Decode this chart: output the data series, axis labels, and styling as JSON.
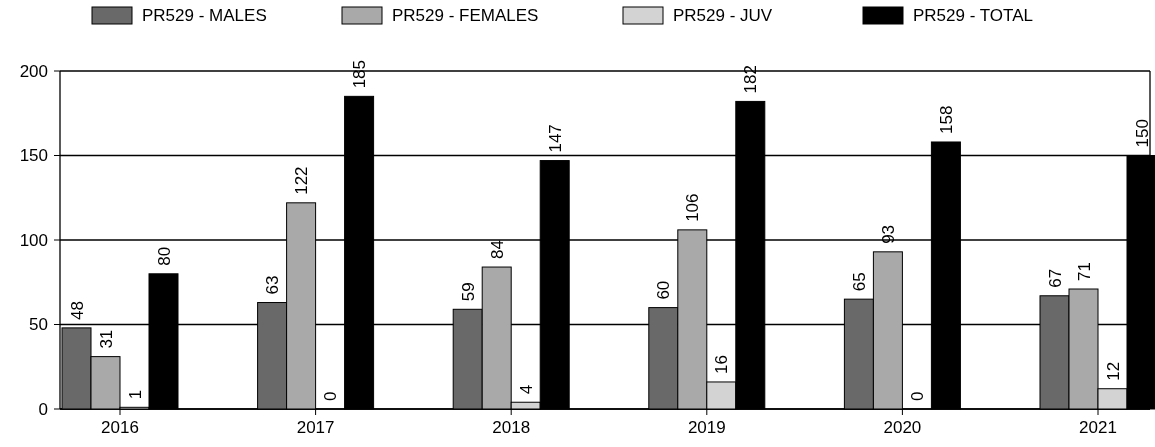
{
  "chart_data": {
    "type": "bar",
    "categories": [
      "2016",
      "2017",
      "2018",
      "2019",
      "2020",
      "2021"
    ],
    "series": [
      {
        "name": "PR529 - MALES",
        "color": "#696969",
        "values": [
          48,
          63,
          59,
          60,
          65,
          67
        ]
      },
      {
        "name": "PR529 - FEMALES",
        "color": "#a9a9a9",
        "values": [
          31,
          122,
          84,
          106,
          93,
          71
        ]
      },
      {
        "name": "PR529 - JUV",
        "color": "#d3d3d3",
        "values": [
          1,
          0,
          4,
          16,
          0,
          12
        ]
      },
      {
        "name": "PR529 - TOTAL",
        "color": "#000000",
        "values": [
          80,
          185,
          147,
          182,
          158,
          150
        ]
      }
    ],
    "ylim": [
      0,
      200
    ],
    "yticks": [
      0,
      50,
      100,
      150,
      200
    ],
    "grid": "y",
    "legend": "top",
    "data_labels": true
  }
}
